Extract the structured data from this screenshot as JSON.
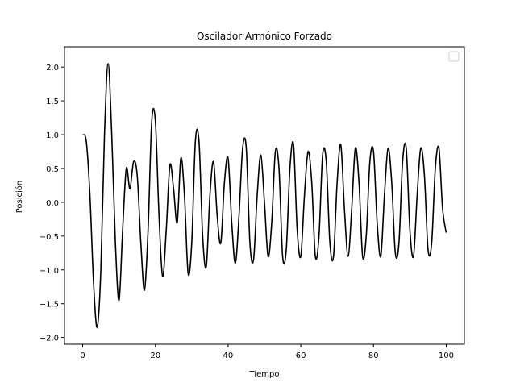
{
  "chart_data": {
    "type": "line",
    "title": "Oscilador Armónico Forzado",
    "xlabel": "Tiempo",
    "ylabel": "Posición",
    "xlim": [
      -5,
      105
    ],
    "ylim": [
      -2.1,
      2.3
    ],
    "xticks": [
      0,
      20,
      40,
      60,
      80,
      100
    ],
    "xtick_labels": [
      "0",
      "20",
      "40",
      "60",
      "80",
      "100"
    ],
    "yticks": [
      -2.0,
      -1.5,
      -1.0,
      -0.5,
      0.0,
      0.5,
      1.0,
      1.5,
      2.0
    ],
    "ytick_labels": [
      "−2.0",
      "−1.5",
      "−1.0",
      "−0.5",
      "0.0",
      "0.5",
      "1.0",
      "1.5",
      "2.0"
    ],
    "grid": false,
    "legend": {
      "placement": "top-right",
      "entries": []
    },
    "series": [
      {
        "color": "#000000",
        "x": [
          0,
          1,
          2,
          3,
          4,
          5,
          6,
          7,
          8,
          9,
          10,
          11,
          12,
          13,
          14,
          15,
          16,
          17,
          18,
          19,
          20,
          21,
          22,
          23,
          24,
          25,
          26,
          27,
          28,
          29,
          30,
          31,
          32,
          33,
          34,
          35,
          36,
          37,
          38,
          39,
          40,
          41,
          42,
          43,
          44,
          45,
          46,
          47,
          48,
          49,
          50,
          51,
          52,
          53,
          54,
          55,
          56,
          57,
          58,
          59,
          60,
          61,
          62,
          63,
          64,
          65,
          66,
          67,
          68,
          69,
          70,
          71,
          72,
          73,
          74,
          75,
          76,
          77,
          78,
          79,
          80,
          81,
          82,
          83,
          84,
          85,
          86,
          87,
          88,
          89,
          90,
          91,
          92,
          93,
          94,
          95,
          96,
          97,
          98,
          99,
          100
        ],
        "y": [
          1.0,
          0.9,
          0.1,
          -1.2,
          -1.85,
          -1.0,
          1.0,
          2.05,
          1.0,
          -0.6,
          -1.45,
          -0.4,
          0.5,
          0.2,
          0.6,
          0.4,
          -0.6,
          -1.3,
          -0.4,
          1.2,
          1.2,
          -0.2,
          -1.1,
          -0.4,
          0.55,
          0.2,
          -0.3,
          0.65,
          0.1,
          -1.05,
          -0.6,
          0.9,
          0.9,
          -0.5,
          -0.95,
          0.1,
          0.6,
          -0.2,
          -0.6,
          0.3,
          0.65,
          -0.3,
          -0.9,
          -0.2,
          0.8,
          0.8,
          -0.6,
          -0.85,
          0.1,
          0.7,
          0.0,
          -0.8,
          -0.3,
          0.75,
          0.5,
          -0.8,
          -0.7,
          0.5,
          0.85,
          -0.4,
          -0.8,
          0.1,
          0.75,
          0.3,
          -0.8,
          -0.5,
          0.7,
          0.6,
          -0.6,
          -0.8,
          0.3,
          0.85,
          -0.1,
          -0.8,
          -0.1,
          0.8,
          0.3,
          -0.8,
          -0.5,
          0.6,
          0.75,
          -0.3,
          -0.8,
          0.1,
          0.8,
          0.3,
          -0.75,
          -0.6,
          0.6,
          0.8,
          -0.4,
          -0.8,
          0.1,
          0.8,
          0.4,
          -0.7,
          -0.6,
          0.5,
          0.8,
          -0.1,
          -0.45
        ]
      }
    ]
  }
}
